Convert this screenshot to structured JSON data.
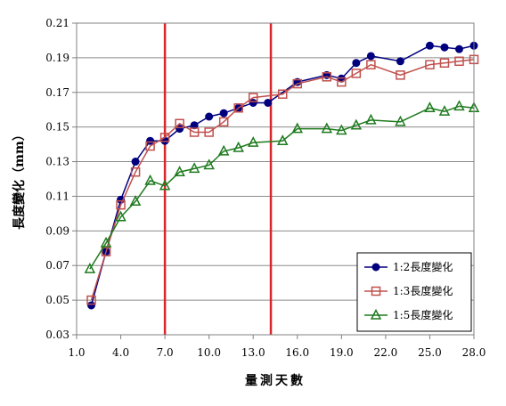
{
  "chart_data": {
    "type": "line",
    "title": "",
    "xlabel": "量測天數",
    "ylabel": "長度變化（mm）",
    "xlim": [
      1.0,
      28.0
    ],
    "ylim": [
      0.03,
      0.21
    ],
    "xticks": [
      1.0,
      4.0,
      7.0,
      10.0,
      13.0,
      16.0,
      19.0,
      22.0,
      25.0,
      28.0
    ],
    "xtick_labels": [
      "1.0",
      "4.0",
      "7.0",
      "10.0",
      "13.0",
      "16.0",
      "19.0",
      "22.0",
      "25.0",
      "28.0"
    ],
    "yticks": [
      0.03,
      0.05,
      0.07,
      0.09,
      0.11,
      0.13,
      0.15,
      0.17,
      0.19,
      0.21
    ],
    "ytick_labels": [
      "0.03",
      "0.05",
      "0.07",
      "0.09",
      "0.11",
      "0.13",
      "0.15",
      "0.17",
      "0.19",
      "0.21"
    ],
    "grid": "horizontal",
    "legend_position": "bottom-right",
    "vertical_lines": [
      {
        "x": 7.0,
        "color": "#d9262b"
      },
      {
        "x": 14.2,
        "color": "#d9262b"
      }
    ],
    "series": [
      {
        "name": "1:2長度變化",
        "color": "#00007f",
        "marker": "circle",
        "x": [
          2,
          3,
          4,
          5,
          6,
          7,
          8,
          9,
          10,
          11,
          12,
          13,
          14,
          16,
          18,
          19,
          20,
          21,
          23,
          25,
          26,
          27,
          28
        ],
        "y": [
          0.047,
          0.078,
          0.108,
          0.13,
          0.142,
          0.142,
          0.149,
          0.151,
          0.156,
          0.158,
          0.161,
          0.164,
          0.164,
          0.176,
          0.18,
          0.178,
          0.187,
          0.191,
          0.188,
          0.197,
          0.196,
          0.195,
          0.197
        ]
      },
      {
        "name": "1:3長度變化",
        "color": "#c0504d",
        "marker": "square",
        "x": [
          2,
          3,
          4,
          5,
          6,
          7,
          8,
          9,
          10,
          11,
          12,
          13,
          15,
          16,
          18,
          19,
          20,
          21,
          23,
          25,
          26,
          27,
          28
        ],
        "y": [
          0.05,
          0.078,
          0.105,
          0.124,
          0.139,
          0.144,
          0.152,
          0.147,
          0.147,
          0.153,
          0.161,
          0.167,
          0.169,
          0.175,
          0.179,
          0.176,
          0.181,
          0.186,
          0.18,
          0.186,
          0.187,
          0.188,
          0.189
        ]
      },
      {
        "name": "1:5長度變化",
        "color": "#1e7a1e",
        "marker": "triangle",
        "x": [
          1.9,
          3,
          4,
          5,
          6,
          7,
          8,
          9,
          10,
          11,
          12,
          13,
          15,
          16,
          18,
          19,
          20,
          21,
          23,
          25,
          26,
          27,
          28
        ],
        "y": [
          0.068,
          0.083,
          0.098,
          0.107,
          0.119,
          0.116,
          0.124,
          0.126,
          0.128,
          0.136,
          0.138,
          0.141,
          0.142,
          0.149,
          0.149,
          0.148,
          0.151,
          0.154,
          0.153,
          0.161,
          0.159,
          0.162,
          0.161
        ]
      }
    ]
  }
}
